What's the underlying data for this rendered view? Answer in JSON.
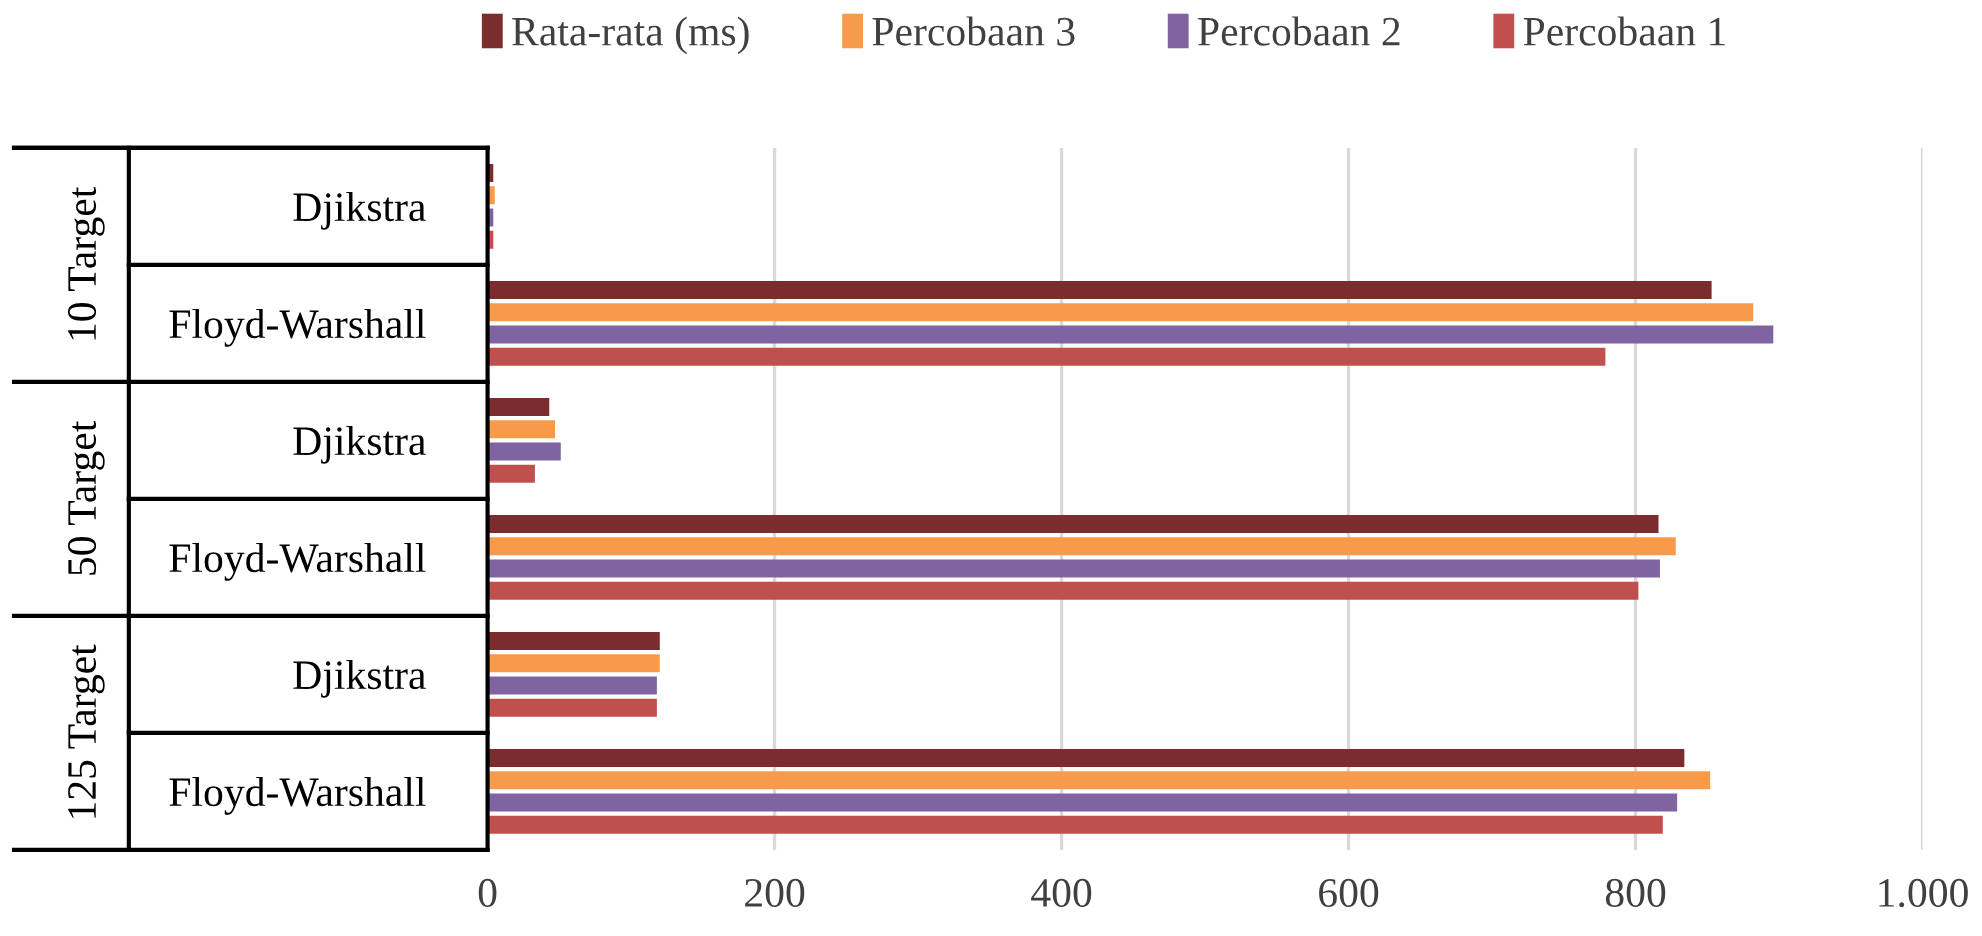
{
  "chart_data": {
    "type": "bar",
    "orientation": "horizontal",
    "categories": [
      "Djikstra",
      "Floyd-Warshall",
      "Djikstra",
      "Floyd-Warshall",
      "Djikstra",
      "Floyd-Warshall"
    ],
    "series": [
      {
        "name": "Rata-rata (ms)",
        "color": "#7b2c2c",
        "values": [
          4,
          853,
          43,
          816,
          120,
          834
        ]
      },
      {
        "name": "Percobaan 3",
        "color": "#f79b4a",
        "values": [
          5,
          882,
          47,
          828,
          120,
          852
        ]
      },
      {
        "name": "Percobaan 2",
        "color": "#8064a2",
        "values": [
          4,
          896,
          51,
          817,
          118,
          829
        ]
      },
      {
        "name": "Percobaan 1",
        "color": "#c0504d",
        "values": [
          4,
          779,
          33,
          802,
          118,
          819
        ]
      }
    ],
    "annotations": [
      "10 Target",
      "50 Target",
      "125 Target"
    ],
    "xlim": [
      0,
      1000
    ],
    "xticks": [
      0,
      200,
      400,
      600,
      800,
      {
        "value": 1000,
        "label": "1.000"
      }
    ],
    "grid": "x",
    "legend": "top"
  }
}
